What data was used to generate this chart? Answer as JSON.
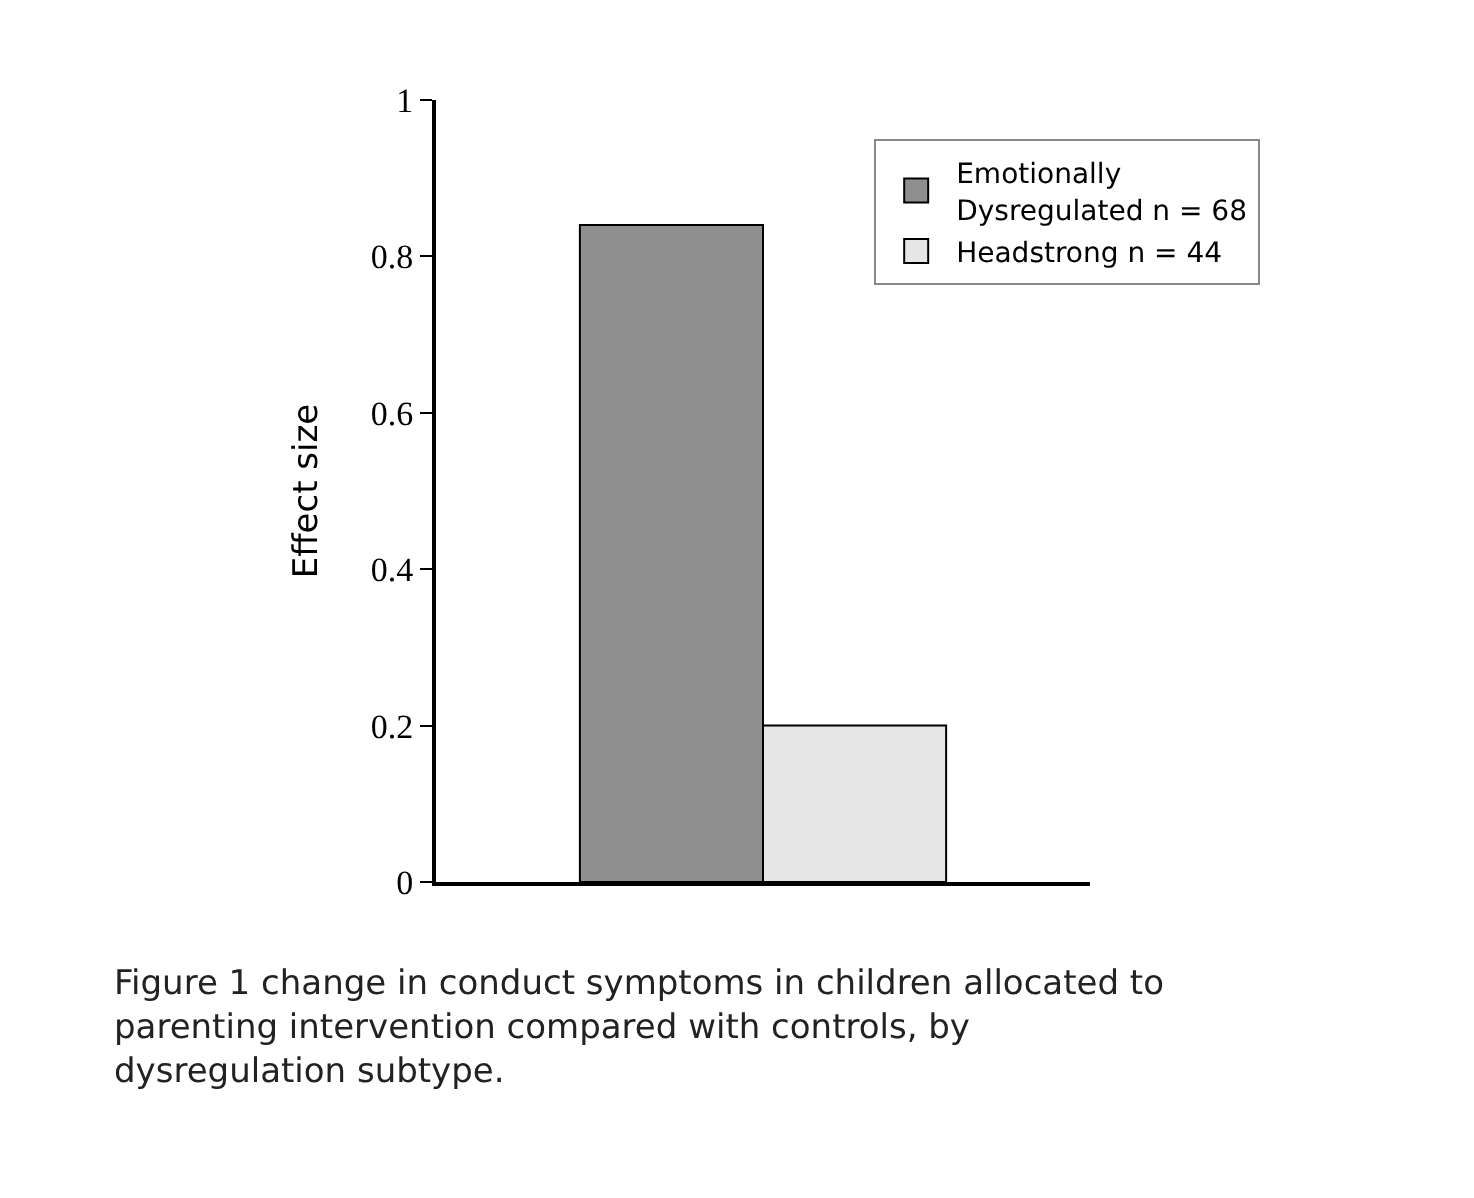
{
  "chart_data": {
    "type": "bar",
    "ylabel": "Effect size",
    "categories": [
      null
    ],
    "series": [
      {
        "name": "Emotionally Dysregulated n = 68",
        "color": "#8f8f8f",
        "values": [
          0.84
        ]
      },
      {
        "name": "Headstrong n = 44",
        "color": "#e6e6e6",
        "values": [
          0.2
        ]
      }
    ],
    "ylim": [
      0,
      1
    ],
    "yticks": [
      0,
      0.2,
      0.4,
      0.6,
      0.8,
      1
    ],
    "legend": "top right",
    "annotations": [
      "Figure 1 change in conduct symptoms in children allocated to parenting intervention compared with controls, by dysregulation subtype."
    ]
  }
}
